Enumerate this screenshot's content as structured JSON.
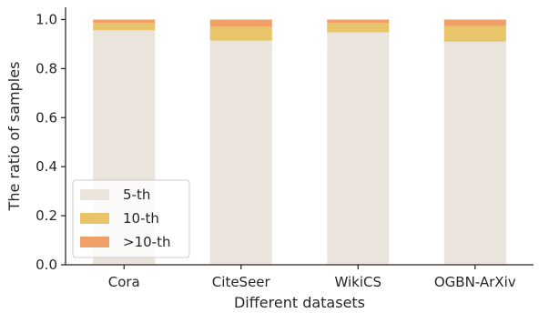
{
  "chart_data": {
    "type": "bar",
    "stacked": true,
    "categories": [
      "Cora",
      "CiteSeer",
      "WikiCS",
      "OGBN-ArXiv"
    ],
    "series": [
      {
        "name": "5-th",
        "color": "#ebe4dc",
        "values": [
          0.956,
          0.914,
          0.948,
          0.91
        ]
      },
      {
        "name": "10-th",
        "color": "#e8c46a",
        "values": [
          0.031,
          0.058,
          0.039,
          0.064
        ]
      },
      {
        "name": ">10-th",
        "color": "#f0a067",
        "values": [
          0.013,
          0.028,
          0.013,
          0.026
        ]
      }
    ],
    "xlabel": "Different datasets",
    "ylabel": "The ratio of samples",
    "ylim": [
      0,
      1.05
    ],
    "yticks": [
      0.0,
      0.2,
      0.4,
      0.6,
      0.8,
      1.0
    ],
    "ytick_labels": [
      "0.0",
      "0.2",
      "0.4",
      "0.6",
      "0.8",
      "1.0"
    ],
    "grid": false,
    "legend_position": "lower-left",
    "spines": "left-bottom"
  }
}
